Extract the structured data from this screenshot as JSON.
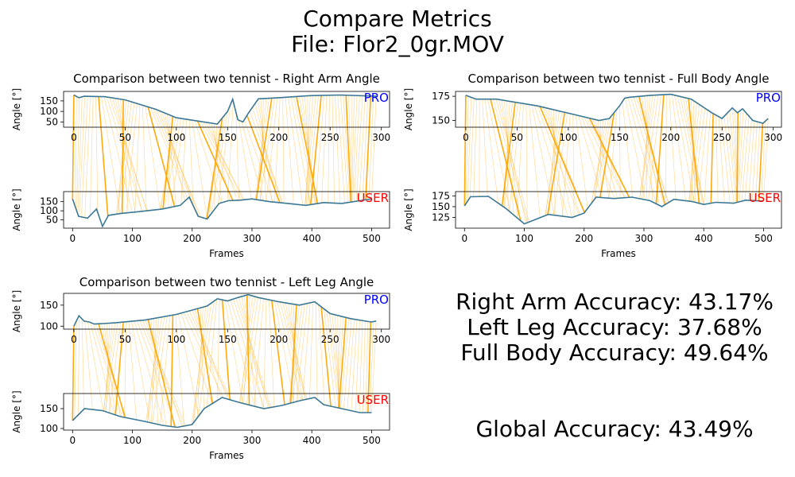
{
  "suptitle_line1": "Compare Metrics",
  "suptitle_line2": "File: Flor2_0gr.MOV",
  "accuracy": {
    "right_arm": "Right Arm Accuracy: 43.17%",
    "left_leg": "Left Leg Accuracy: 37.68%",
    "full_body": "Full Body Accuracy: 49.64%",
    "global": "Global Accuracy: 43.49%"
  },
  "colors": {
    "curve": "#3a7896",
    "connector": "#ffa500",
    "pro_label": "#0000ff",
    "user_label": "#ff0000"
  },
  "chart_data": [
    {
      "type": "line",
      "title": "Comparison between two tennist - Right Arm Angle",
      "xlabel": "Frames",
      "ylabel": "Angle [°]",
      "pro": {
        "label": "PRO",
        "xlim": [
          -10,
          308
        ],
        "ylim": [
          25,
          195
        ],
        "yticks": [
          50,
          100,
          150
        ],
        "xticks": [
          0,
          50,
          100,
          150,
          200,
          250,
          300
        ],
        "x": [
          0,
          5,
          10,
          30,
          50,
          80,
          100,
          120,
          140,
          150,
          155,
          160,
          165,
          170,
          180,
          200,
          230,
          260,
          290,
          295
        ],
        "y": [
          178,
          165,
          172,
          170,
          155,
          110,
          70,
          55,
          40,
          100,
          158,
          60,
          50,
          90,
          160,
          165,
          175,
          178,
          173,
          172
        ]
      },
      "user": {
        "label": "USER",
        "xlim": [
          -15,
          530
        ],
        "ylim": [
          5,
          205
        ],
        "yticks": [
          50,
          100,
          150
        ],
        "xticks": [
          0,
          100,
          200,
          300,
          400,
          500
        ],
        "x": [
          0,
          10,
          25,
          40,
          50,
          60,
          80,
          110,
          150,
          180,
          195,
          210,
          225,
          245,
          260,
          280,
          300,
          330,
          360,
          390,
          420,
          450,
          480,
          500
        ],
        "y": [
          165,
          70,
          60,
          110,
          15,
          75,
          85,
          95,
          110,
          130,
          175,
          70,
          55,
          140,
          155,
          158,
          165,
          150,
          140,
          130,
          145,
          140,
          155,
          165
        ]
      }
    },
    {
      "type": "line",
      "title": "Comparison between two tennist - Full Body Angle",
      "xlabel": "Frames",
      "ylabel": "Angle [°]",
      "pro": {
        "label": "PRO",
        "xlim": [
          -10,
          308
        ],
        "ylim": [
          143,
          180
        ],
        "yticks": [
          150,
          175
        ],
        "xticks": [
          0,
          50,
          100,
          150,
          200,
          250,
          300
        ],
        "x": [
          0,
          10,
          30,
          70,
          110,
          130,
          140,
          150,
          155,
          160,
          180,
          200,
          220,
          240,
          250,
          260,
          265,
          270,
          280,
          290,
          295
        ],
        "y": [
          176,
          172,
          172,
          165,
          155,
          150,
          152,
          165,
          173,
          174,
          176,
          177,
          172,
          158,
          152,
          163,
          158,
          162,
          150,
          147,
          152
        ]
      },
      "user": {
        "label": "USER",
        "xlim": [
          -15,
          530
        ],
        "ylim": [
          100,
          185
        ],
        "yticks": [
          125,
          150,
          175
        ],
        "xticks": [
          0,
          100,
          200,
          300,
          400,
          500
        ],
        "x": [
          0,
          10,
          40,
          70,
          100,
          140,
          180,
          200,
          220,
          250,
          280,
          310,
          330,
          350,
          380,
          400,
          420,
          450,
          470,
          500
        ],
        "y": [
          152,
          173,
          174,
          145,
          110,
          132,
          125,
          135,
          172,
          169,
          172,
          164,
          150,
          167,
          162,
          155,
          160,
          158,
          165,
          163
        ]
      }
    },
    {
      "type": "line",
      "title": "Comparison between two tennist - Left Leg Angle",
      "xlabel": "Frames",
      "ylabel": "Angle [°]",
      "pro": {
        "label": "PRO",
        "xlim": [
          -10,
          308
        ],
        "ylim": [
          93,
          178
        ],
        "yticks": [
          100,
          150
        ],
        "xticks": [
          0,
          50,
          100,
          150,
          200,
          250,
          300
        ],
        "x": [
          0,
          5,
          10,
          15,
          20,
          40,
          70,
          100,
          130,
          140,
          150,
          160,
          170,
          180,
          200,
          220,
          235,
          250,
          270,
          290,
          295
        ],
        "y": [
          100,
          125,
          112,
          110,
          105,
          108,
          115,
          128,
          148,
          165,
          160,
          168,
          175,
          168,
          158,
          150,
          158,
          130,
          118,
          110,
          112
        ]
      },
      "user": {
        "label": "USER",
        "xlim": [
          -15,
          530
        ],
        "ylim": [
          96,
          188
        ],
        "yticks": [
          100,
          150
        ],
        "xticks": [
          0,
          100,
          200,
          300,
          400,
          500
        ],
        "x": [
          0,
          20,
          50,
          80,
          120,
          150,
          175,
          200,
          220,
          250,
          280,
          320,
          350,
          380,
          405,
          420,
          450,
          480,
          500
        ],
        "y": [
          120,
          150,
          145,
          130,
          118,
          108,
          103,
          110,
          150,
          178,
          165,
          150,
          158,
          170,
          178,
          160,
          150,
          140,
          140
        ]
      }
    }
  ]
}
